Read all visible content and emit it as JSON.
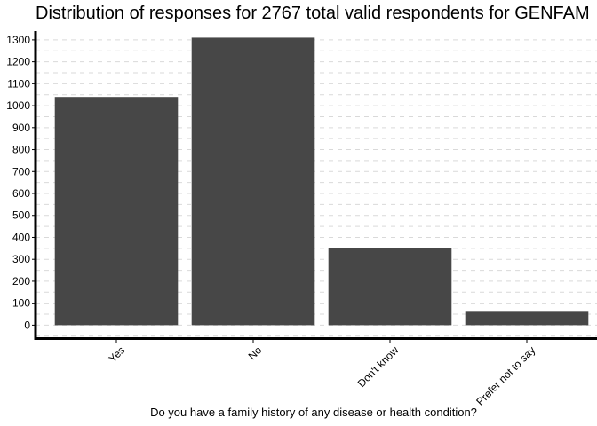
{
  "chart_data": {
    "type": "bar",
    "title": "Distribution of responses for 2767 total valid respondents for GENFAM",
    "xlabel": "Do you have a family history of any disease or health condition?",
    "ylabel": "",
    "categories": [
      "Yes",
      "No",
      "Don't know",
      "Prefer not to say"
    ],
    "values": [
      1040,
      1310,
      352,
      65
    ],
    "ylim": [
      -55,
      1340
    ],
    "yticks": [
      0,
      100,
      200,
      300,
      400,
      500,
      600,
      700,
      800,
      900,
      1000,
      1100,
      1200,
      1300
    ],
    "grid": true,
    "legend": "none",
    "bar_color": "#474747",
    "grid_color": "#d9d9d9"
  }
}
